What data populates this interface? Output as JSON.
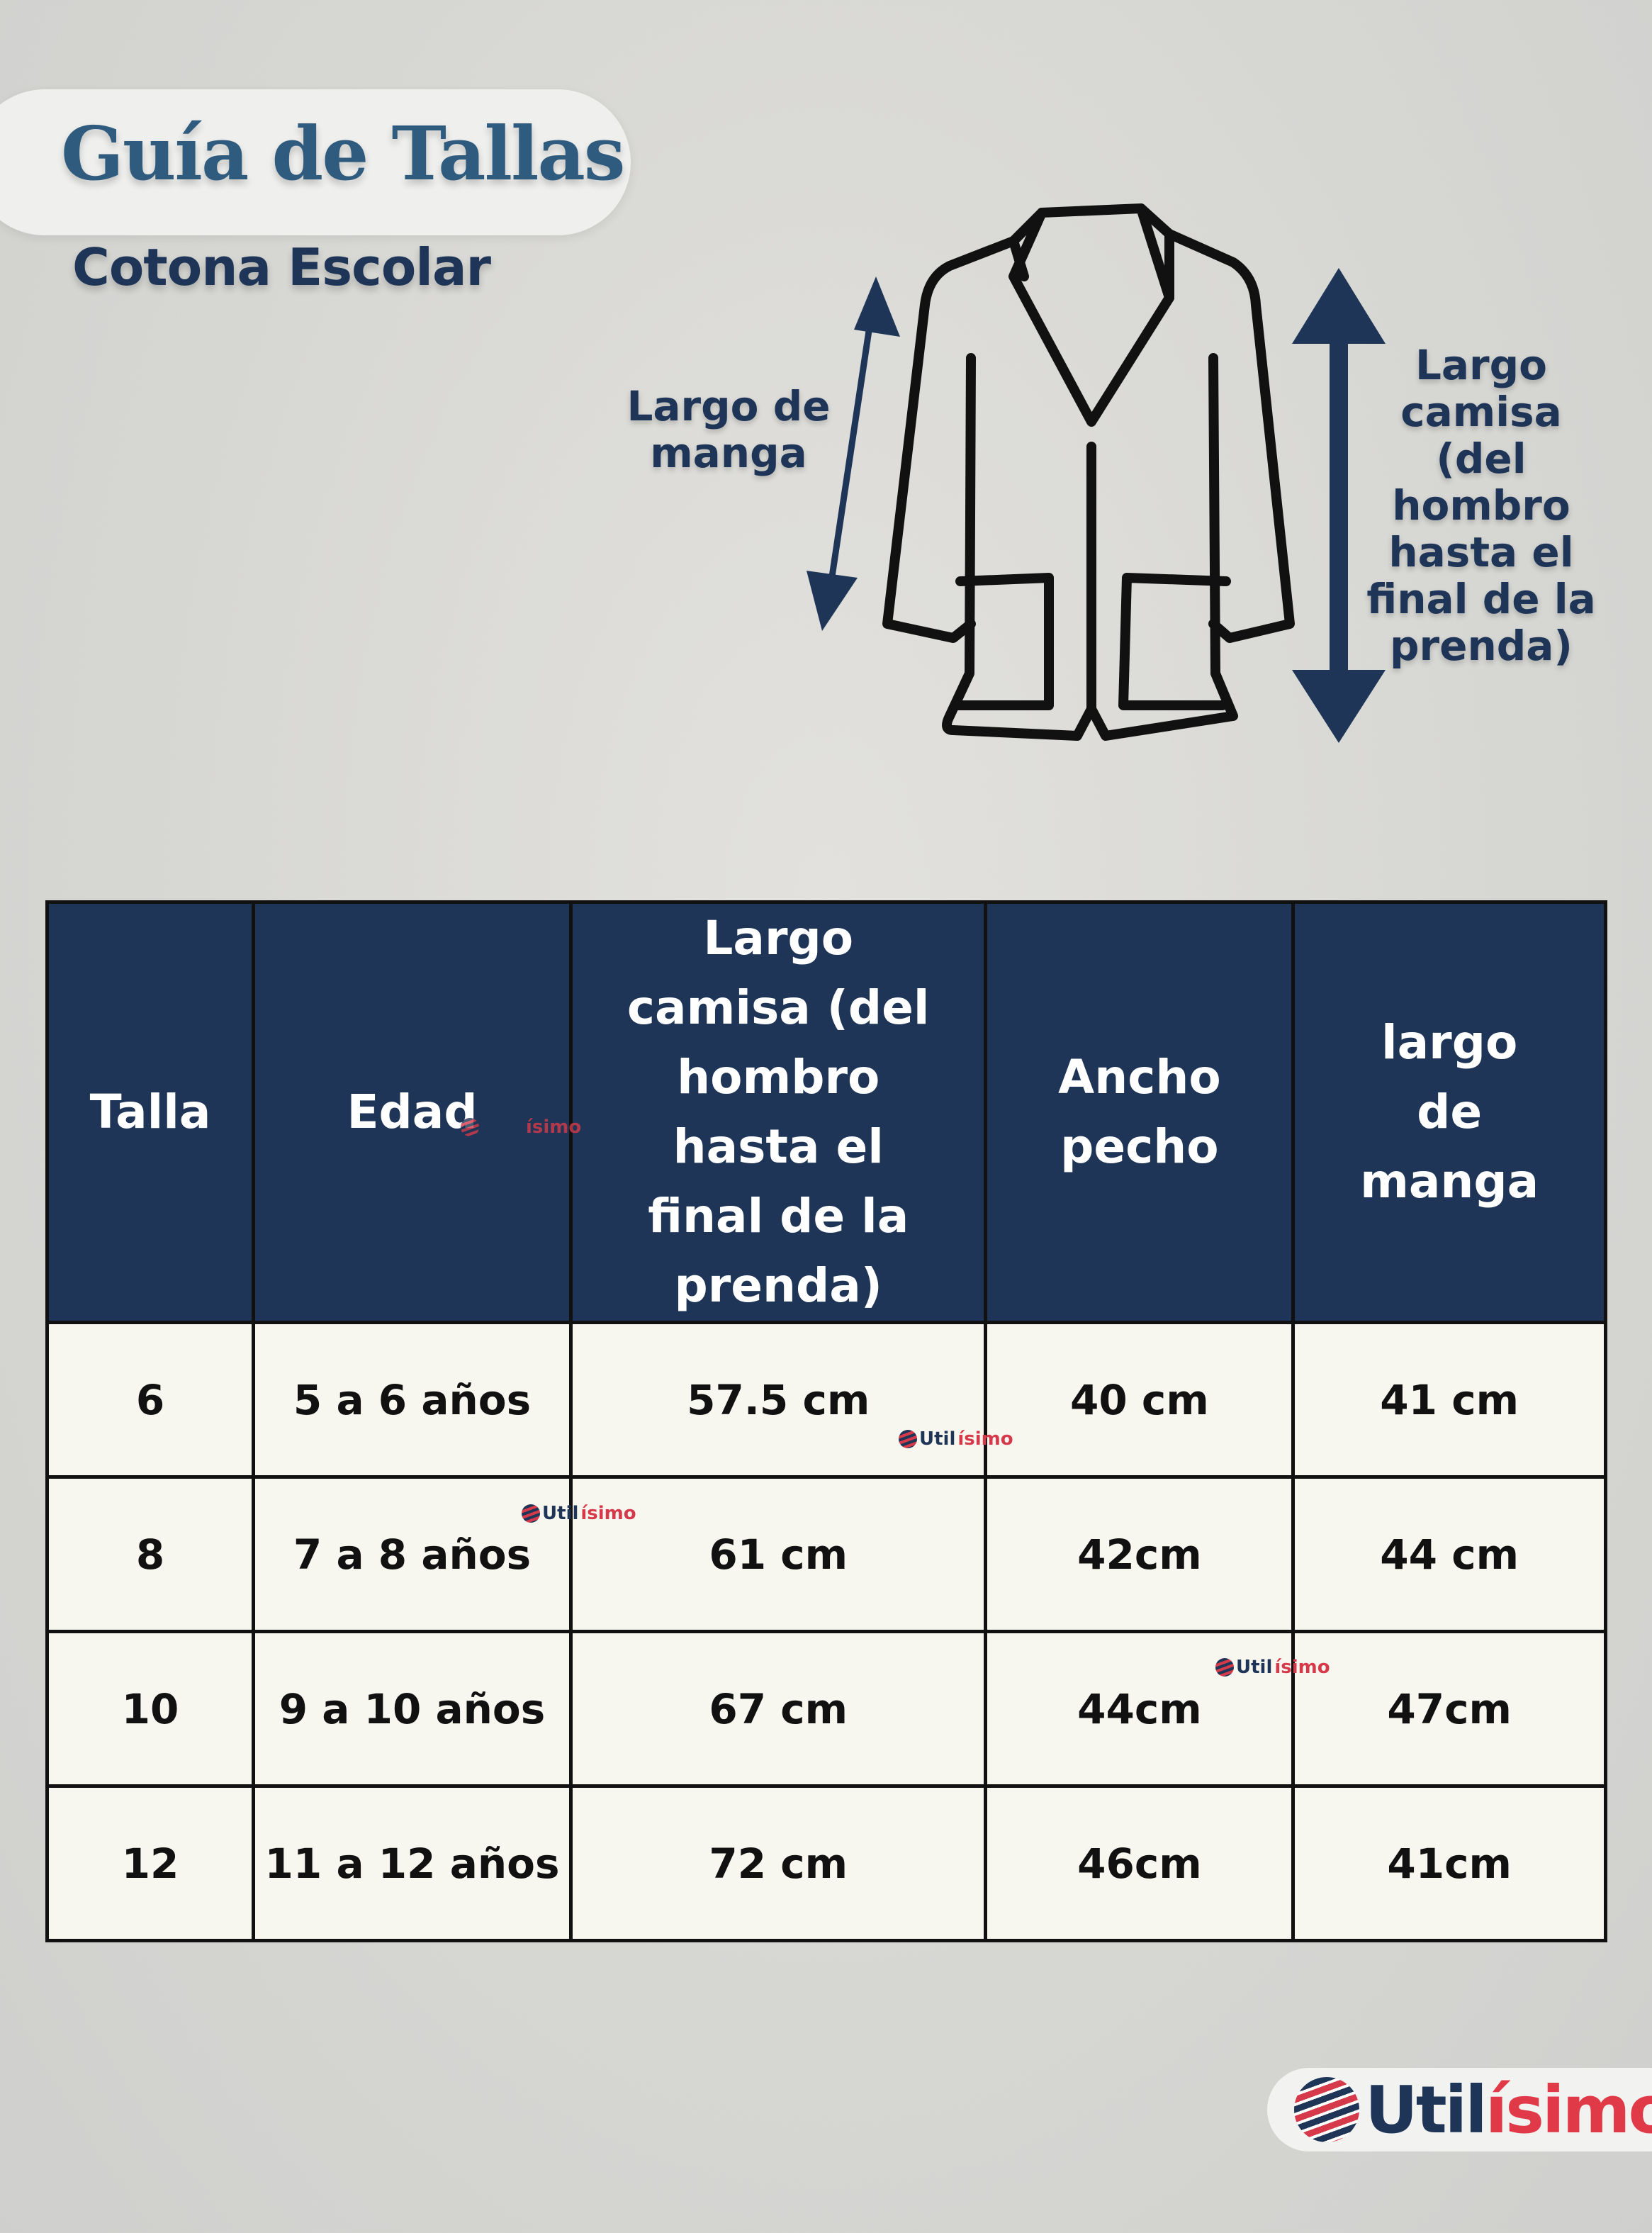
{
  "header": {
    "title": "Guía de Tallas",
    "subtitle": "Cotona Escolar"
  },
  "diagram": {
    "sleeve_label": [
      "Largo de",
      "manga"
    ],
    "length_label": [
      "Largo",
      "camisa",
      "(del",
      "hombro",
      "hasta el",
      "final de la",
      "prenda)"
    ],
    "arrow_color": "#1e3557"
  },
  "table": {
    "headers": [
      "Talla",
      "Edad",
      "Largo camisa (del hombro hasta el final de la prenda)",
      "Ancho pecho",
      "largo de manga"
    ],
    "rows": [
      [
        "6",
        "5 a 6 años",
        "57.5 cm",
        "40 cm",
        "41 cm"
      ],
      [
        "8",
        "7 a 8 años",
        "61 cm",
        "42cm",
        "44 cm"
      ],
      [
        "10",
        "9 a 10 años",
        "67 cm",
        "44cm",
        "47cm"
      ],
      [
        "12",
        "11 a 12 años",
        "72 cm",
        "46cm",
        "41cm"
      ]
    ],
    "header_bg": "#1e3557",
    "body_bg": "#f8f7ef"
  },
  "watermarks": {
    "partial": "ísimo",
    "prefix": "Util",
    "suffix": "ísimo"
  },
  "logo": {
    "prefix": "Util",
    "suffix": "ísimo"
  }
}
